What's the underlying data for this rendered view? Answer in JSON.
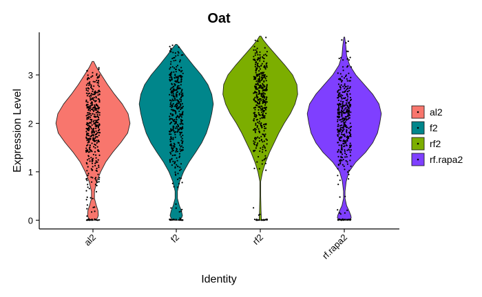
{
  "chart_data": {
    "type": "violin",
    "title": "Oat",
    "xlabel": "Identity",
    "ylabel": "Expression Level",
    "ylim": [
      -0.18,
      3.88
    ],
    "yticks": [
      0,
      1,
      2,
      3
    ],
    "categories": [
      "al2",
      "f2",
      "rf2",
      "rf.rapa2"
    ],
    "colors": {
      "al2": "#F8766D",
      "f2": "#00868B",
      "rf2": "#7CAE00",
      "rf.rapa2": "#7F3FFF"
    },
    "legend_position": "right",
    "legend": [
      "al2",
      "f2",
      "rf2",
      "rf.rapa2"
    ],
    "violins": [
      {
        "name": "al2",
        "y_min": 0,
        "y_max": 3.28,
        "half_width_profile": [
          [
            0,
            0.06
          ],
          [
            0.05,
            0.12
          ],
          [
            0.1,
            0.14
          ],
          [
            0.2,
            0.13
          ],
          [
            0.3,
            0.09
          ],
          [
            0.45,
            0.04
          ],
          [
            0.6,
            0.04
          ],
          [
            0.8,
            0.1
          ],
          [
            1.0,
            0.2
          ],
          [
            1.2,
            0.33
          ],
          [
            1.4,
            0.51
          ],
          [
            1.6,
            0.72
          ],
          [
            1.8,
            0.9
          ],
          [
            2.0,
            0.96
          ],
          [
            2.2,
            0.91
          ],
          [
            2.4,
            0.76
          ],
          [
            2.6,
            0.56
          ],
          [
            2.8,
            0.38
          ],
          [
            3.0,
            0.22
          ],
          [
            3.15,
            0.1
          ],
          [
            3.28,
            0.02
          ]
        ]
      },
      {
        "name": "f2",
        "y_min": 0,
        "y_max": 3.63,
        "half_width_profile": [
          [
            0,
            0.08
          ],
          [
            0.05,
            0.14
          ],
          [
            0.1,
            0.16
          ],
          [
            0.2,
            0.13
          ],
          [
            0.3,
            0.08
          ],
          [
            0.45,
            0.03
          ],
          [
            0.6,
            0.03
          ],
          [
            0.8,
            0.09
          ],
          [
            1.0,
            0.19
          ],
          [
            1.2,
            0.33
          ],
          [
            1.4,
            0.5
          ],
          [
            1.6,
            0.66
          ],
          [
            1.8,
            0.78
          ],
          [
            2.0,
            0.86
          ],
          [
            2.2,
            0.92
          ],
          [
            2.4,
            0.96
          ],
          [
            2.6,
            0.92
          ],
          [
            2.8,
            0.82
          ],
          [
            3.0,
            0.65
          ],
          [
            3.2,
            0.44
          ],
          [
            3.4,
            0.24
          ],
          [
            3.55,
            0.1
          ],
          [
            3.63,
            0.02
          ]
        ]
      },
      {
        "name": "rf2",
        "y_min": 0,
        "y_max": 3.8,
        "half_width_profile": [
          [
            0,
            0.03
          ],
          [
            0.2,
            0.02
          ],
          [
            0.5,
            0.01
          ],
          [
            0.8,
            0.01
          ],
          [
            1.0,
            0.06
          ],
          [
            1.2,
            0.14
          ],
          [
            1.4,
            0.24
          ],
          [
            1.6,
            0.36
          ],
          [
            1.8,
            0.48
          ],
          [
            2.0,
            0.62
          ],
          [
            2.2,
            0.78
          ],
          [
            2.4,
            0.9
          ],
          [
            2.6,
            0.97
          ],
          [
            2.8,
            0.95
          ],
          [
            3.0,
            0.84
          ],
          [
            3.2,
            0.64
          ],
          [
            3.4,
            0.42
          ],
          [
            3.6,
            0.2
          ],
          [
            3.72,
            0.08
          ],
          [
            3.8,
            0.02
          ]
        ]
      },
      {
        "name": "rf.rapa2",
        "y_min": 0,
        "y_max": 3.78,
        "half_width_profile": [
          [
            0,
            0.12
          ],
          [
            0.05,
            0.18
          ],
          [
            0.1,
            0.17
          ],
          [
            0.2,
            0.12
          ],
          [
            0.3,
            0.06
          ],
          [
            0.45,
            0.02
          ],
          [
            0.6,
            0.02
          ],
          [
            0.8,
            0.05
          ],
          [
            1.0,
            0.12
          ],
          [
            1.2,
            0.3
          ],
          [
            1.4,
            0.55
          ],
          [
            1.6,
            0.74
          ],
          [
            1.8,
            0.86
          ],
          [
            2.0,
            0.92
          ],
          [
            2.2,
            0.96
          ],
          [
            2.4,
            0.9
          ],
          [
            2.6,
            0.74
          ],
          [
            2.8,
            0.52
          ],
          [
            3.0,
            0.3
          ],
          [
            3.2,
            0.14
          ],
          [
            3.4,
            0.06
          ],
          [
            3.6,
            0.04
          ],
          [
            3.78,
            0.01
          ]
        ]
      }
    ],
    "points_note": "jittered individual cell expression values overlaid as black dots"
  }
}
